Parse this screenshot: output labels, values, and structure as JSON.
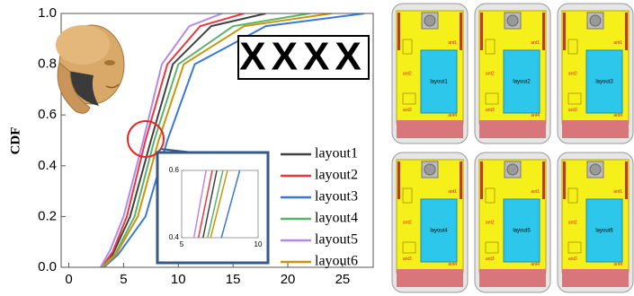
{
  "chart_data": [
    {
      "type": "line",
      "ylabel": "CDF",
      "xlim": [
        -0.7,
        27.8
      ],
      "ylim": [
        0,
        1
      ],
      "xticks": [
        0,
        5,
        10,
        15,
        20,
        25
      ],
      "yticks": [
        {
          "value": 0,
          "label": "0.0"
        },
        0.2,
        0.4,
        0.6,
        0.8,
        {
          "value": 1,
          "label": "1.0"
        }
      ],
      "annotation": "XXXX",
      "series": [
        {
          "name": "layout1",
          "color": "#404040",
          "x": [
            3,
            4,
            5.6,
            7.5,
            9.5,
            13,
            18
          ],
          "values": [
            0,
            0.05,
            0.2,
            0.5,
            0.8,
            0.95,
            1
          ]
        },
        {
          "name": "layout2",
          "color": "#e8383d",
          "x": [
            3,
            4,
            5.3,
            7,
            9,
            12,
            16
          ],
          "values": [
            0,
            0.06,
            0.2,
            0.5,
            0.8,
            0.95,
            1
          ]
        },
        {
          "name": "layout3",
          "color": "#3a78d8",
          "x": [
            3.2,
            4.5,
            7,
            9,
            11.5,
            18,
            27
          ],
          "values": [
            0,
            0.05,
            0.2,
            0.5,
            0.8,
            0.95,
            1
          ]
        },
        {
          "name": "layout4",
          "color": "#5bb36a",
          "x": [
            3,
            4.2,
            6,
            7.8,
            10,
            15,
            22
          ],
          "values": [
            0,
            0.05,
            0.2,
            0.5,
            0.8,
            0.95,
            1
          ]
        },
        {
          "name": "layout5",
          "color": "#b58ae6",
          "x": [
            2.9,
            3.8,
            5,
            6.8,
            8.5,
            11,
            14
          ],
          "values": [
            0,
            0.07,
            0.2,
            0.5,
            0.8,
            0.95,
            1
          ]
        },
        {
          "name": "layout6",
          "color": "#c8960c",
          "x": [
            3.1,
            4.3,
            6.3,
            8.2,
            10.5,
            16,
            24
          ],
          "values": [
            0,
            0.05,
            0.2,
            0.5,
            0.8,
            0.95,
            1
          ]
        }
      ]
    },
    {
      "type": "line",
      "xlim": [
        5,
        10
      ],
      "ylim": [
        0.4,
        0.6
      ],
      "xticks": [
        5,
        10
      ],
      "yticks": [
        0.4,
        0.6
      ],
      "series": [
        {
          "color": "#404040",
          "x": [
            6.4,
            7.3
          ],
          "values": [
            0.4,
            0.6
          ]
        },
        {
          "color": "#e8383d",
          "x": [
            6.1,
            7.0
          ],
          "values": [
            0.4,
            0.6
          ]
        },
        {
          "color": "#3a78d8",
          "x": [
            7.6,
            8.8
          ],
          "values": [
            0.4,
            0.6
          ]
        },
        {
          "color": "#5bb36a",
          "x": [
            6.7,
            7.7
          ],
          "values": [
            0.4,
            0.6
          ]
        },
        {
          "color": "#b58ae6",
          "x": [
            5.8,
            6.6
          ],
          "values": [
            0.4,
            0.6
          ]
        },
        {
          "color": "#c8960c",
          "x": [
            6.9,
            8.0
          ],
          "values": [
            0.4,
            0.6
          ]
        }
      ]
    }
  ],
  "panels": [
    {
      "label": "layout1",
      "antennas": [
        "ant1",
        "ant2",
        "ant3",
        "ant4"
      ]
    },
    {
      "label": "layout2",
      "antennas": [
        "ant1",
        "ant2",
        "ant3",
        "ant4"
      ]
    },
    {
      "label": "layout3",
      "antennas": [
        "ant1",
        "ant2",
        "ant3",
        "ant4"
      ]
    },
    {
      "label": "layout4",
      "antennas": [
        "ant1",
        "ant2",
        "ant3",
        "ant4"
      ]
    },
    {
      "label": "layout5",
      "antennas": [
        "ant1",
        "ant2",
        "ant3",
        "ant4"
      ]
    },
    {
      "label": "layout6",
      "antennas": [
        "ant1",
        "ant2",
        "ant3",
        "ant4"
      ]
    }
  ]
}
